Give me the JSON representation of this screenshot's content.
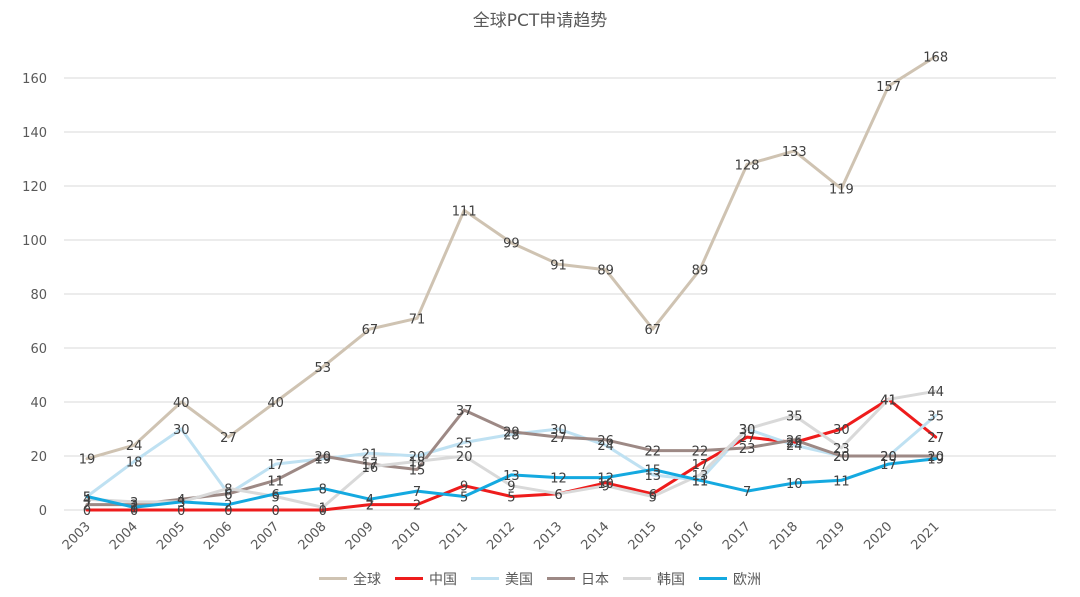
{
  "chart_data": {
    "type": "line",
    "title": "全球PCT申请趋势",
    "xlabel": "",
    "ylabel": "",
    "ylim": [
      0,
      170
    ],
    "yticks": [
      0,
      20,
      40,
      60,
      80,
      100,
      120,
      140,
      160
    ],
    "grid": true,
    "legend_position": "bottom",
    "categories": [
      "2003",
      "2004",
      "2005",
      "2006",
      "2007",
      "2008",
      "2009",
      "2010",
      "2011",
      "2012",
      "2013",
      "2014",
      "2015",
      "2016",
      "2017",
      "2018",
      "2019",
      "2020",
      "2021"
    ],
    "series": [
      {
        "name": "全球",
        "color": "#cfc3b2",
        "values": [
          19,
          24,
          40,
          27,
          40,
          53,
          67,
          71,
          111,
          99,
          91,
          89,
          67,
          89,
          128,
          133,
          119,
          157,
          168
        ]
      },
      {
        "name": "中国",
        "color": "#ee1c1c",
        "values": [
          0,
          0,
          0,
          0,
          0,
          0,
          2,
          2,
          9,
          5,
          6,
          10,
          6,
          17,
          27,
          25,
          30,
          41,
          27
        ]
      },
      {
        "name": "美国",
        "color": "#bfe1f2",
        "values": [
          5,
          18,
          30,
          6,
          17,
          19,
          21,
          20,
          25,
          28,
          30,
          24,
          13,
          11,
          30,
          24,
          20,
          20,
          35
        ]
      },
      {
        "name": "日本",
        "color": "#9d8985",
        "values": [
          2,
          2,
          4,
          6,
          11,
          20,
          17,
          15,
          37,
          29,
          27,
          26,
          22,
          22,
          23,
          26,
          20,
          20,
          20
        ]
      },
      {
        "name": "韩国",
        "color": "#d9d9d9",
        "values": [
          4,
          3,
          3,
          8,
          5,
          1,
          16,
          18,
          20,
          9,
          6,
          9,
          5,
          13,
          30,
          35,
          23,
          41,
          44
        ]
      },
      {
        "name": "欧洲",
        "color": "#14a9e0",
        "values": [
          5,
          1,
          3,
          2,
          6,
          8,
          4,
          7,
          5,
          13,
          12,
          12,
          15,
          11,
          7,
          10,
          11,
          17,
          19
        ]
      }
    ]
  }
}
